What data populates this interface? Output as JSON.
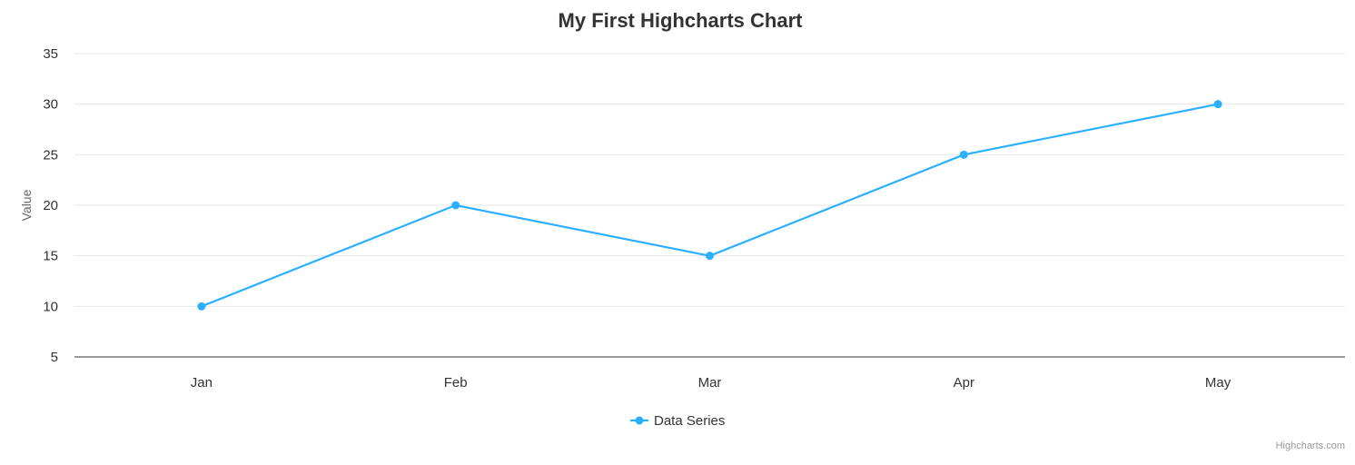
{
  "chart_data": {
    "type": "line",
    "title": "My First Highcharts Chart",
    "xlabel": "",
    "ylabel": "Value",
    "categories": [
      "Jan",
      "Feb",
      "Mar",
      "Apr",
      "May"
    ],
    "series": [
      {
        "name": "Data Series",
        "values": [
          10,
          20,
          15,
          25,
          30
        ],
        "color": "#2caffe"
      }
    ],
    "ylim": [
      5,
      35
    ],
    "yticks": [
      5,
      10,
      15,
      20,
      25,
      30,
      35
    ],
    "grid": true,
    "legend": "bottom-center"
  },
  "credits": "Highcharts.com"
}
